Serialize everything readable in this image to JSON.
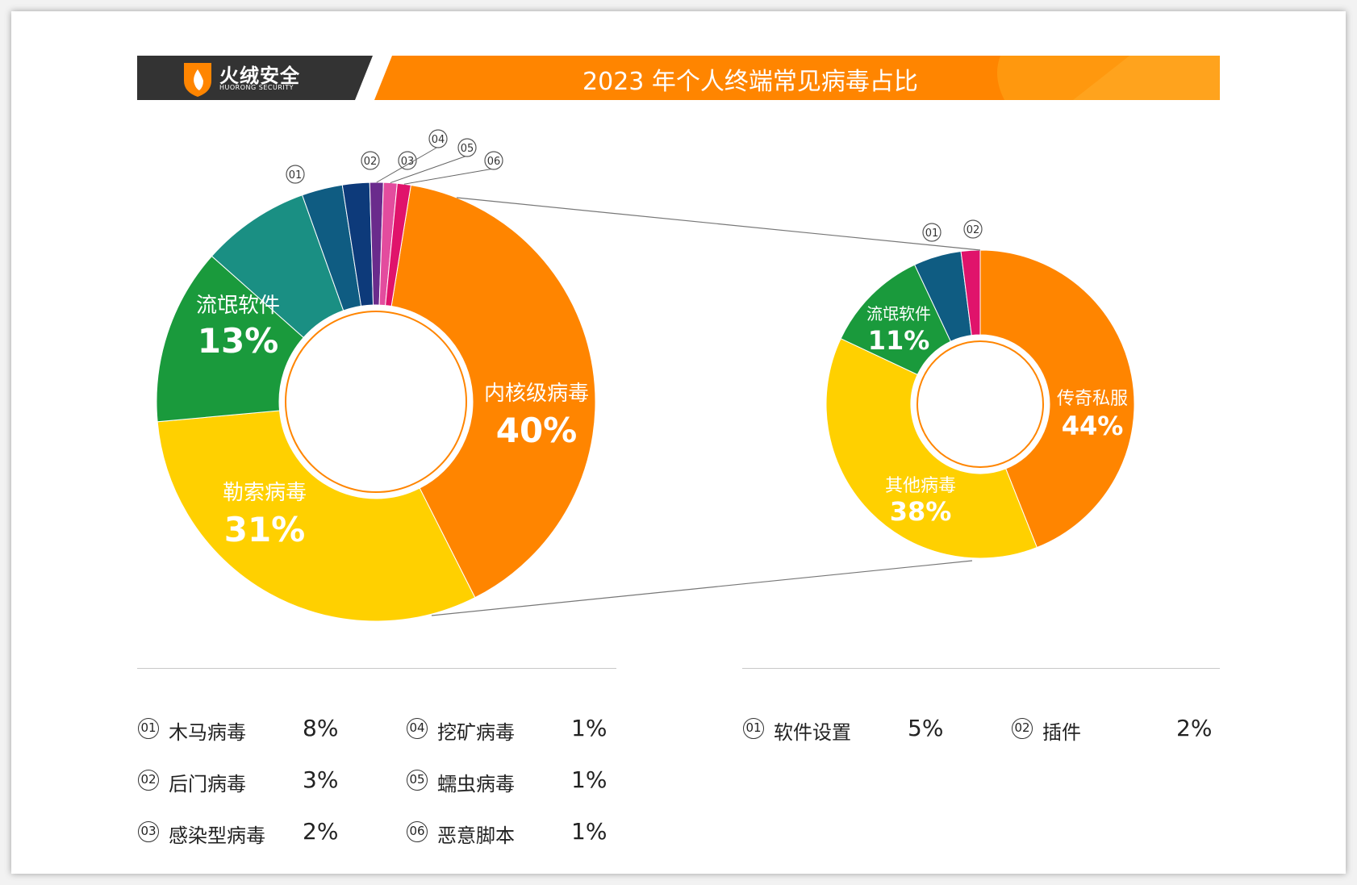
{
  "header": {
    "brand_name": "火绒安全",
    "brand_sub": "HUORONG SECURITY",
    "title": "2023 年个人终端常见病毒占比"
  },
  "colors": {
    "orange": "#FF8500",
    "yellow": "#FFD000",
    "green": "#1A9A3C",
    "teal": "#1A8F83",
    "steel_blue": "#0F5C82",
    "navy": "#0D3A7A",
    "purple": "#6A2B8C",
    "pink": "#E34C9E",
    "magenta": "#E0136B",
    "dark_header": "#333333"
  },
  "chart_data": [
    {
      "type": "pie",
      "variant": "donut",
      "slices": [
        {
          "name": "内核级病毒",
          "value": 40,
          "label": "40%",
          "color": "#FF8500"
        },
        {
          "name": "勒索病毒",
          "value": 31,
          "label": "31%",
          "color": "#FFD000"
        },
        {
          "name": "流氓软件",
          "value": 13,
          "label": "13%",
          "color": "#1A9A3C"
        },
        {
          "name": "木马病毒",
          "value": 8,
          "label": "8%",
          "color": "#1A8F83",
          "badge": "01"
        },
        {
          "name": "后门病毒",
          "value": 3,
          "label": "3%",
          "color": "#0F5C82",
          "badge": "02"
        },
        {
          "name": "感染型病毒",
          "value": 2,
          "label": "2%",
          "color": "#0D3A7A",
          "badge": "03"
        },
        {
          "name": "挖矿病毒",
          "value": 1,
          "label": "1%",
          "color": "#6A2B8C",
          "badge": "04"
        },
        {
          "name": "蠕虫病毒",
          "value": 1,
          "label": "1%",
          "color": "#E34C9E",
          "badge": "05"
        },
        {
          "name": "恶意脚本",
          "value": 1,
          "label": "1%",
          "color": "#E0136B",
          "badge": "06"
        }
      ]
    },
    {
      "type": "pie",
      "variant": "donut",
      "slices": [
        {
          "name": "传奇私服",
          "value": 44,
          "label": "44%",
          "color": "#FF8500"
        },
        {
          "name": "其他病毒",
          "value": 38,
          "label": "38%",
          "color": "#FFD000"
        },
        {
          "name": "流氓软件",
          "value": 11,
          "label": "11%",
          "color": "#1A9A3C"
        },
        {
          "name": "软件设置",
          "value": 5,
          "label": "5%",
          "color": "#0F5C82",
          "badge": "01"
        },
        {
          "name": "插件",
          "value": 2,
          "label": "2%",
          "color": "#E0136B",
          "badge": "02"
        }
      ]
    }
  ],
  "legend_left": [
    {
      "badge": "01",
      "name": "木马病毒",
      "value": "8%"
    },
    {
      "badge": "02",
      "name": "后门病毒",
      "value": "3%"
    },
    {
      "badge": "03",
      "name": "感染型病毒",
      "value": "2%"
    },
    {
      "badge": "04",
      "name": "挖矿病毒",
      "value": "1%"
    },
    {
      "badge": "05",
      "name": "蠕虫病毒",
      "value": "1%"
    },
    {
      "badge": "06",
      "name": "恶意脚本",
      "value": "1%"
    }
  ],
  "legend_right": [
    {
      "badge": "01",
      "name": "软件设置",
      "value": "5%"
    },
    {
      "badge": "02",
      "name": "插件",
      "value": "2%"
    }
  ]
}
